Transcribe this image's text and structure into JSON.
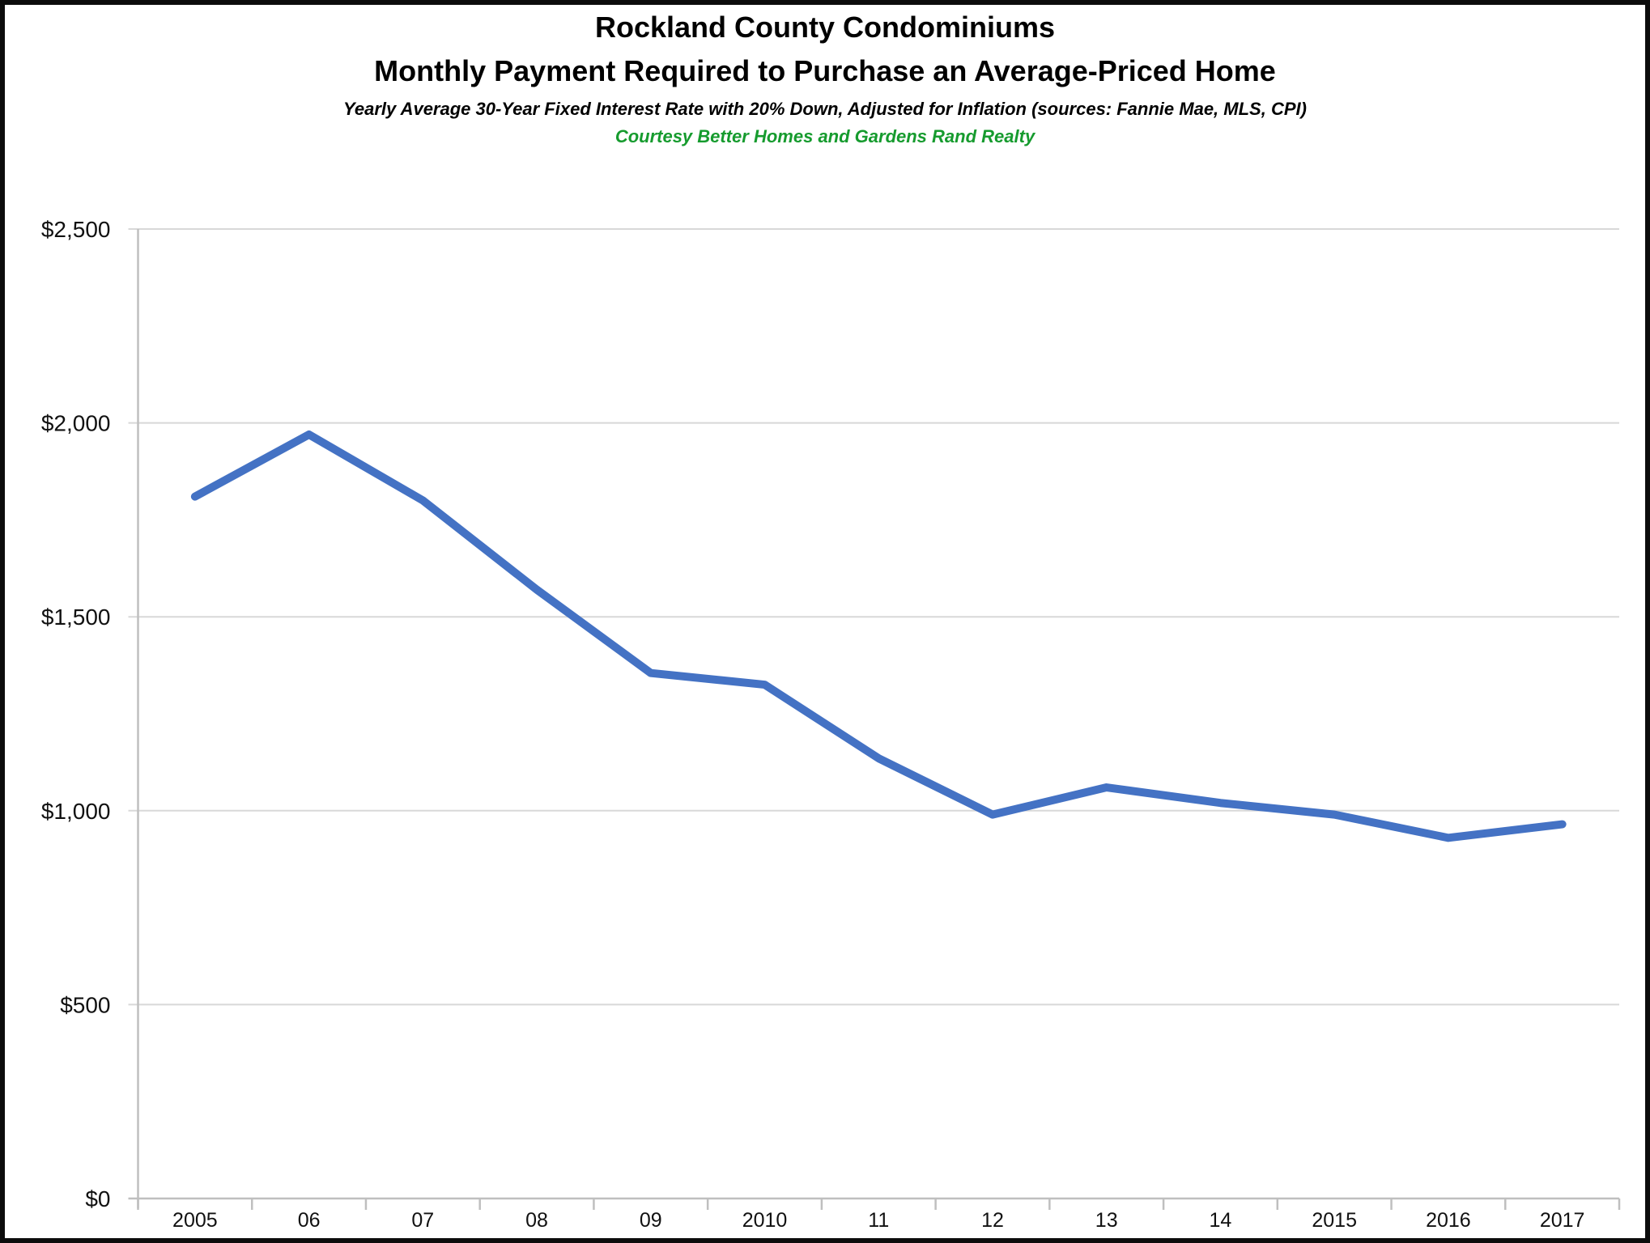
{
  "header": {
    "title_line1": "Rockland County Condominiums",
    "title_line2": "Monthly Payment Required to Purchase an Average-Priced Home",
    "subtitle": "Yearly Average 30-Year Fixed Interest Rate with 20% Down, Adjusted for Inflation (sources: Fannie Mae, MLS, CPI)",
    "courtesy": "Courtesy Better Homes and Gardens Rand Realty",
    "courtesy_color": "#169b2e"
  },
  "chart_data": {
    "type": "line",
    "title": "Rockland County Condominiums - Monthly Payment Required to Purchase an Average-Priced Home",
    "categories": [
      "2005",
      "06",
      "07",
      "08",
      "09",
      "2010",
      "11",
      "12",
      "13",
      "14",
      "2015",
      "2016",
      "2017"
    ],
    "series": [
      {
        "name": "Monthly payment (inflation-adjusted)",
        "color": "#4472C4",
        "values": [
          1810,
          1970,
          1800,
          1570,
          1355,
          1325,
          1135,
          990,
          1060,
          1020,
          990,
          930,
          965
        ]
      }
    ],
    "xlabel": "",
    "ylabel": "",
    "ylim": [
      0,
      2500
    ],
    "ytick_step": 500,
    "ytick_labels": [
      "$0",
      "$500",
      "$1,000",
      "$1,500",
      "$2,000",
      "$2,500"
    ],
    "grid": "horizontal-only",
    "legend": "none",
    "grid_color": "#d8d8d8",
    "axis_color": "#bfbfbf",
    "tick_label_color": "#000000",
    "line_width": 10
  }
}
